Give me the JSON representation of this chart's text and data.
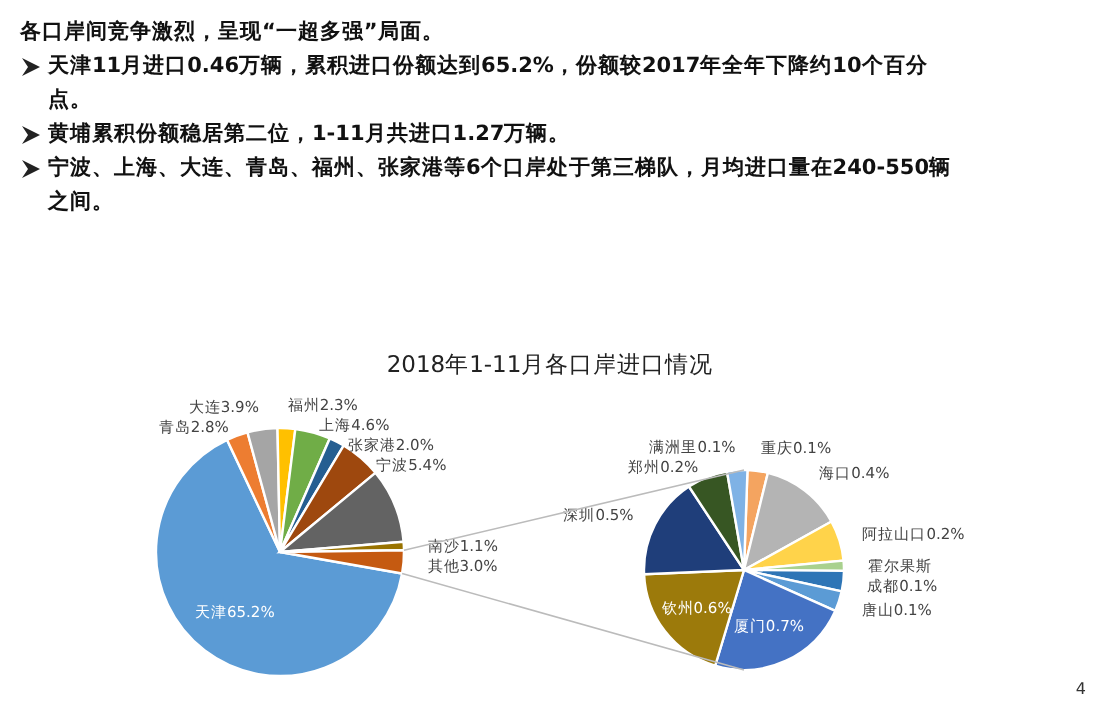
{
  "chart_data": [
    {
      "type": "pie",
      "title": "2018年1-11月各口岸进口情况",
      "categories": [
        "天津",
        "青岛",
        "大连",
        "福州",
        "上海",
        "张家港",
        "宁波",
        null,
        "南沙",
        "其他"
      ],
      "values": [
        65.2,
        2.8,
        3.9,
        2.3,
        4.6,
        2.0,
        5.4,
        9.7,
        1.1,
        3.0
      ],
      "colors": [
        "#5b9bd5",
        "#ed7d31",
        "#a5a5a5",
        "#ffc000",
        "#70ad47",
        "#255e91",
        "#9e480e",
        "#636363",
        "#997300",
        "#c55a11"
      ],
      "value_labels": [
        "65.2%",
        "2.8%",
        "3.9%",
        "2.3%",
        "4.6%",
        "2.0%",
        "5.4%",
        null,
        "1.1%",
        "3.0%"
      ],
      "annotations": [
        "各口岸间竞争激烈，呈现“一超多强”局面。",
        "天津11月进口0.46万辆，累积进口份额达到65.2%，份额较2017年全年下降约10个百分点。",
        "黄埔累积份额稳居第二位，1-11月共进口1.27万辆。",
        "宁波、上海、大连、青岛、福州、张家港等6个口岸处于第三梯队，月均进口量在240-550辆之间。",
        "4"
      ]
    },
    {
      "type": "pie",
      "categories": [
        "重庆",
        "海口",
        "阿拉山口",
        "霍尔果斯",
        "成都",
        "唐山",
        "厦门",
        "钦州",
        "深圳",
        "郑州",
        "满洲里"
      ],
      "values": [
        0.1,
        0.4,
        0.2,
        0.05,
        0.1,
        0.1,
        0.7,
        0.6,
        0.5,
        0.2,
        0.1
      ],
      "colors": [
        "#f4a460",
        "#b4b4b4",
        "#ffd34a",
        "#a9d18e",
        "#2e75b6",
        "#5b9bd5",
        "#4472c4",
        "#9c7a0b",
        "#1f3e7a",
        "#375623",
        "#7fb2e5"
      ],
      "value_labels": [
        "0.1%",
        "0.4%",
        "0.2%",
        null,
        "0.1%",
        "0.1%",
        "0.7%",
        "0.6%",
        "0.5%",
        "0.2%",
        "0.1%"
      ]
    }
  ]
}
